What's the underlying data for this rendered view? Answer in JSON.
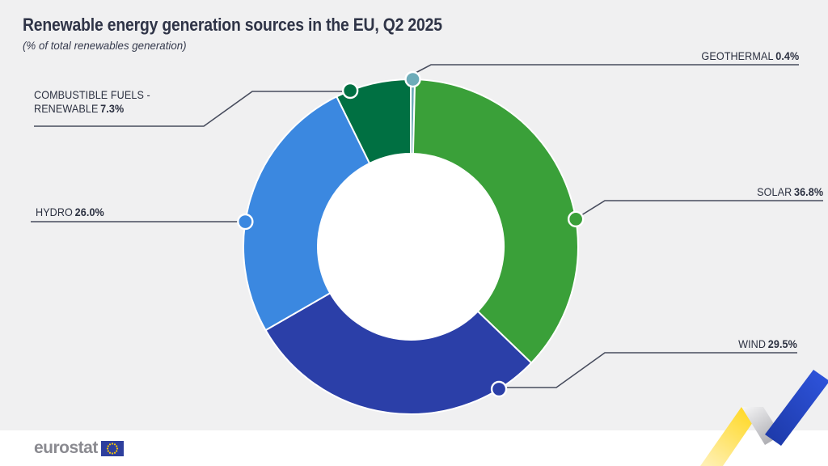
{
  "header": {
    "title": "Renewable energy generation sources in the EU, Q2 2025",
    "subtitle": "(% of total renewables generation)"
  },
  "chart_data": {
    "type": "pie",
    "donut": true,
    "title": "Renewable energy generation sources in the EU, Q2 2025",
    "subtitle": "(% of total renewables generation)",
    "unit": "% of total renewables generation",
    "start_angle_deg": 0,
    "direction": "clockwise",
    "inner_radius_ratio": 0.56,
    "legend_position": "callout-labels",
    "slices": [
      {
        "label": "GEOTHERMAL",
        "value": 0.4,
        "display": "0.4%",
        "color": "#6DACB9",
        "callout_anchor_deg": 0.7
      },
      {
        "label": "SOLAR",
        "value": 36.8,
        "display": "36.8%",
        "color": "#3AA039",
        "callout_anchor_deg": 80.5
      },
      {
        "label": "WIND",
        "value": 29.5,
        "display": "29.5%",
        "color": "#2B3FA8",
        "callout_anchor_deg": 148.2
      },
      {
        "label": "HYDRO",
        "value": 26.0,
        "display": "26.0%",
        "color": "#3B88E0",
        "callout_anchor_deg": 278.6
      },
      {
        "label": "COMBUSTIBLE FUELS - RENEWABLE",
        "value": 7.3,
        "display": "7.3%",
        "color": "#007042",
        "callout_anchor_deg": 338.8
      }
    ]
  },
  "callouts": {
    "geothermal": {
      "name": "GEOTHERMAL",
      "pct": "0.4%"
    },
    "solar": {
      "name": "SOLAR",
      "pct": "36.8%"
    },
    "wind": {
      "name": "WIND",
      "pct": "29.5%"
    },
    "hydro": {
      "name": "HYDRO",
      "pct": "26.0%"
    },
    "combustible": {
      "name_line1": "COMBUSTIBLE FUELS -",
      "name_line2": "RENEWABLE",
      "pct": "7.3%"
    }
  },
  "footer": {
    "logo_text": "eurostat"
  },
  "colors": {
    "background": "#f0f0f1",
    "footer_strip": "#ffffff",
    "text": "#2f3447",
    "leader_line": "#474c5d",
    "donut_hole": "#ffffff",
    "slice_border": "#ffffff",
    "ribbon_yellow": "#FFD617",
    "ribbon_blue": "#2446C8",
    "ribbon_fold_gray": "#c9c9cc",
    "eu_flag_blue": "#2E3F9D",
    "eu_flag_stars": "#FFCC00",
    "logo_gray": "#8a8a90"
  }
}
